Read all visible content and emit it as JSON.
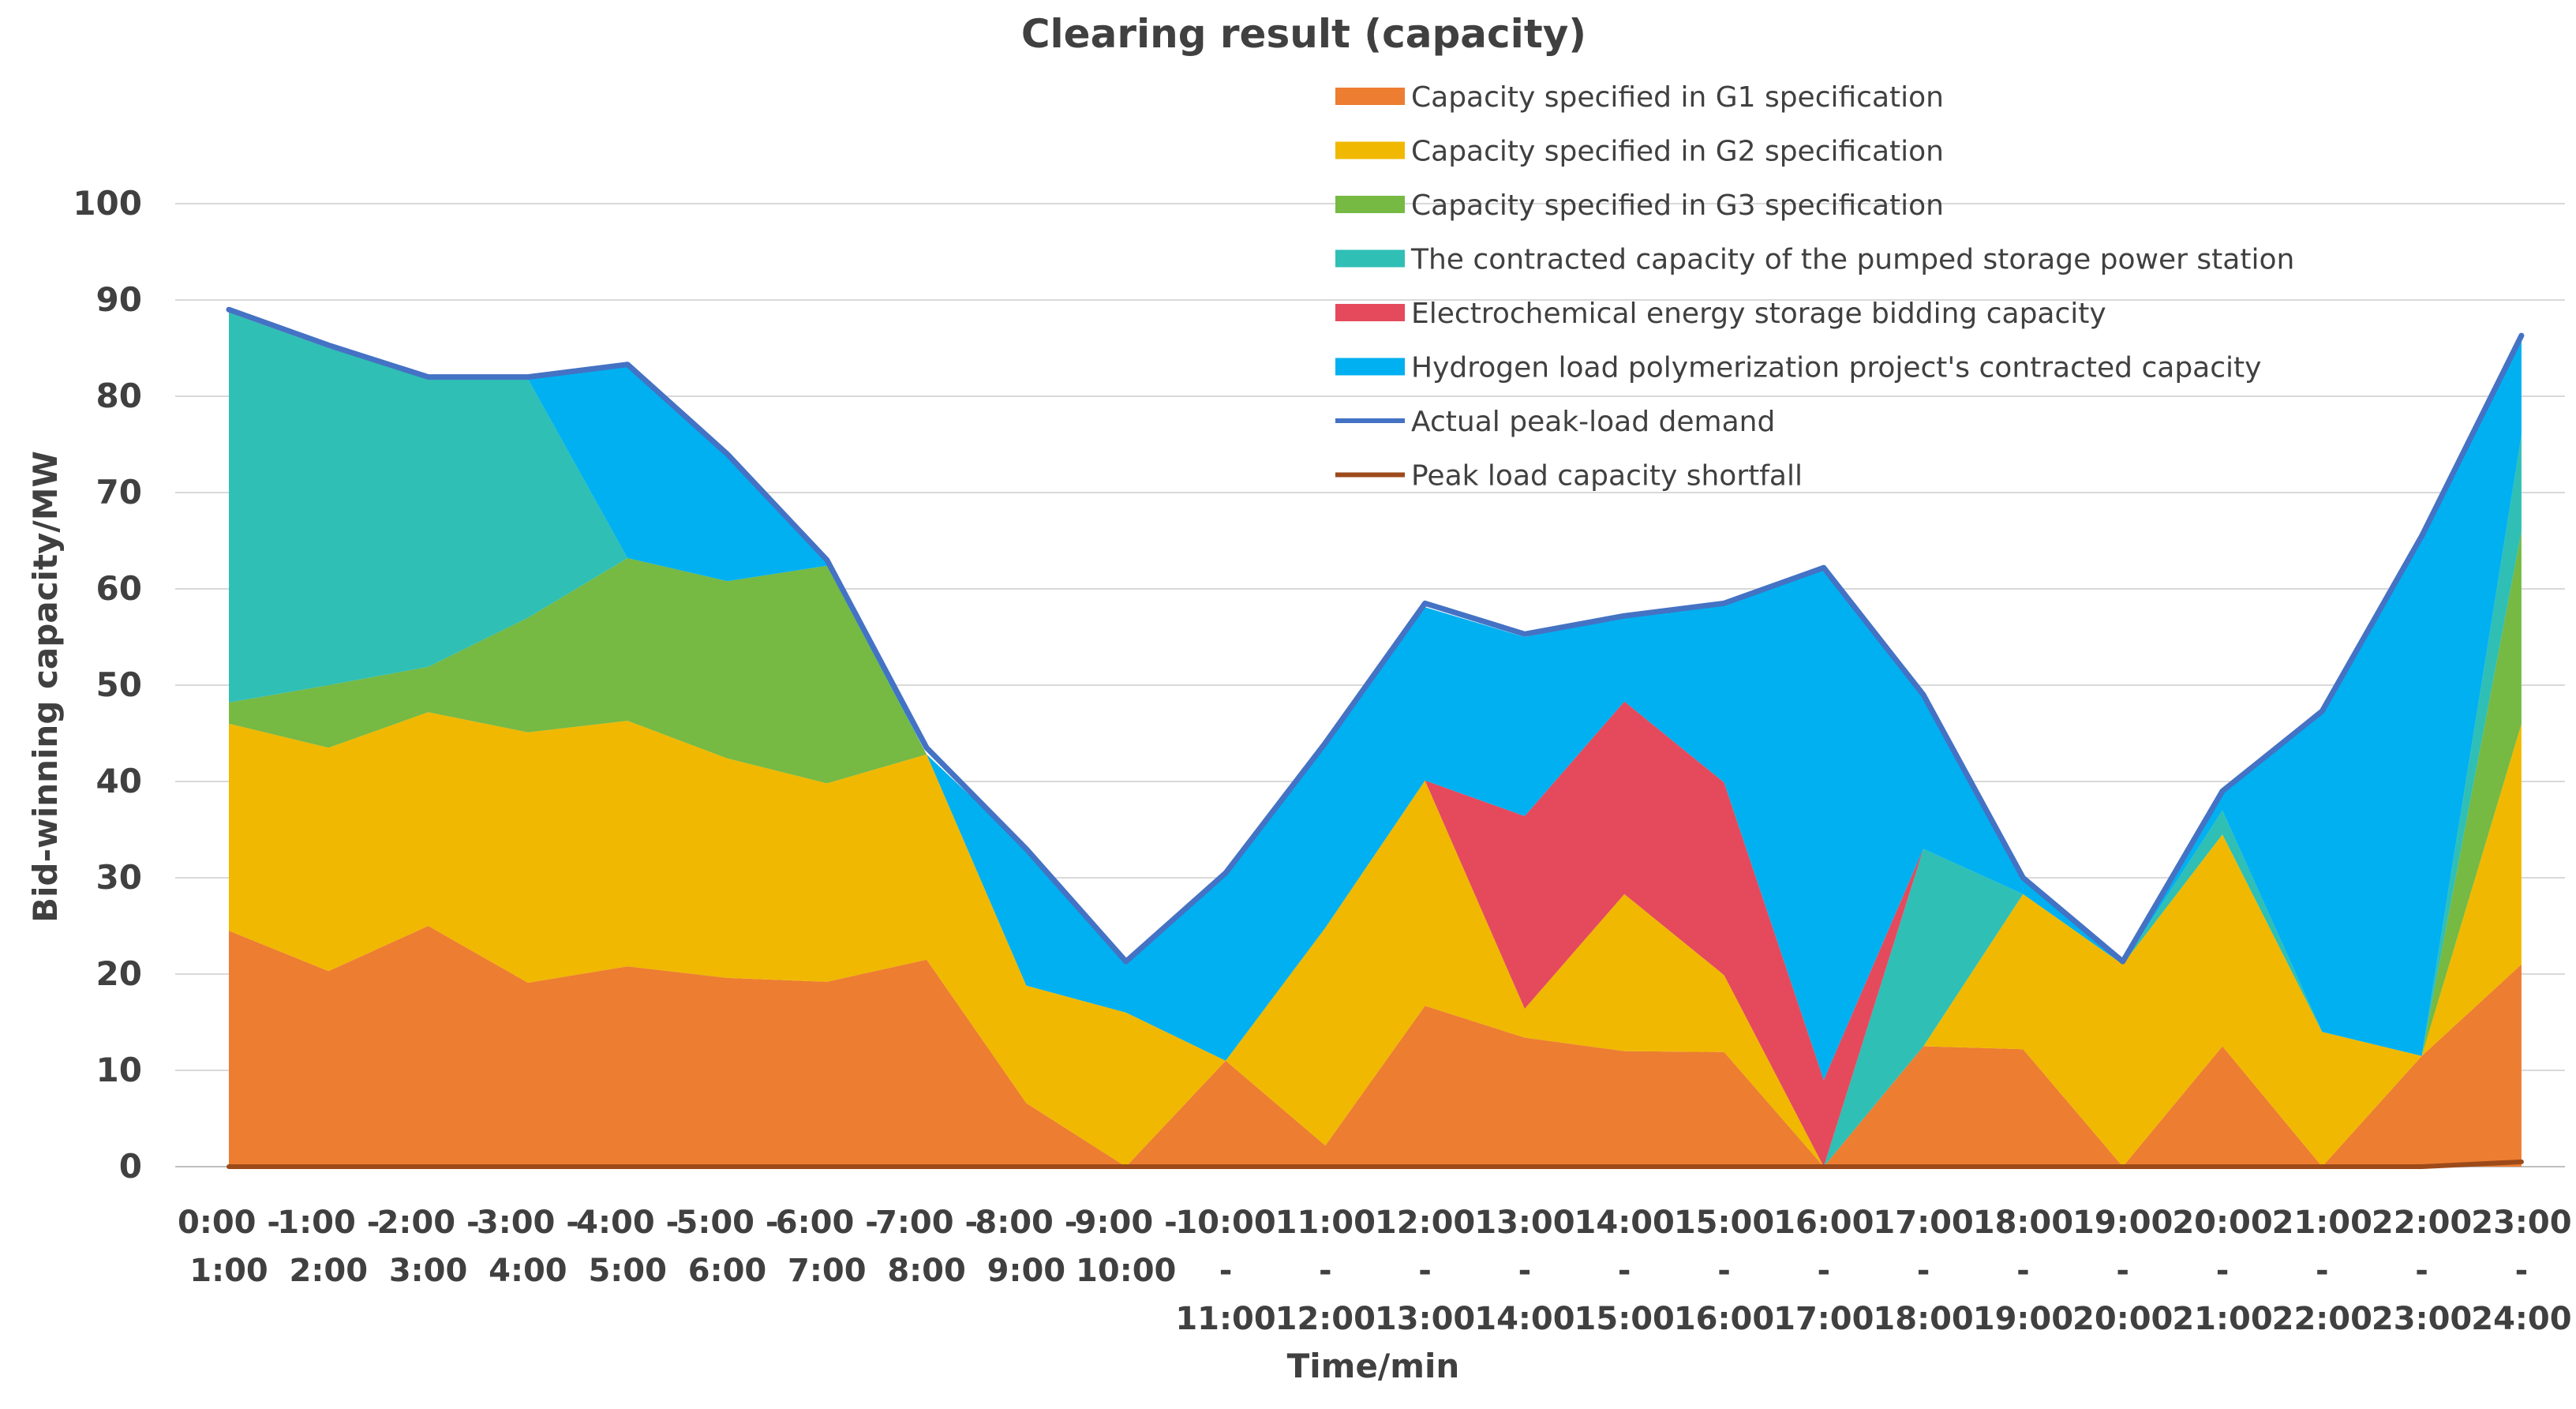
{
  "chart_data": {
    "type": "area",
    "title": "Clearing result (capacity)",
    "xlabel": "Time/min",
    "ylabel": "Bid-winning capacity/MW",
    "ylim": [
      0,
      100
    ],
    "yticks": [
      0,
      10,
      20,
      30,
      40,
      50,
      60,
      70,
      80,
      90,
      100
    ],
    "grid": true,
    "legend_position": "top-right",
    "categories": [
      [
        "0:00 -",
        "1:00"
      ],
      [
        "1:00 -",
        "2:00"
      ],
      [
        "2:00 -",
        "3:00"
      ],
      [
        "3:00 -",
        "4:00"
      ],
      [
        "4:00 -",
        "5:00"
      ],
      [
        "5:00 -",
        "6:00"
      ],
      [
        "6:00 -",
        "7:00"
      ],
      [
        "7:00 -",
        "8:00"
      ],
      [
        "8:00 -",
        "9:00"
      ],
      [
        "9:00 -",
        "10:00"
      ],
      [
        "10:00",
        "-",
        "11:00"
      ],
      [
        "11:00",
        "-",
        "12:00"
      ],
      [
        "12:00",
        "-",
        "13:00"
      ],
      [
        "13:00",
        "-",
        "14:00"
      ],
      [
        "14:00",
        "-",
        "15:00"
      ],
      [
        "15:00",
        "-",
        "16:00"
      ],
      [
        "16:00",
        "-",
        "17:00"
      ],
      [
        "17:00",
        "-",
        "18:00"
      ],
      [
        "18:00",
        "-",
        "19:00"
      ],
      [
        "19:00",
        "-",
        "20:00"
      ],
      [
        "20:00",
        "-",
        "21:00"
      ],
      [
        "21:00",
        "-",
        "22:00"
      ],
      [
        "22:00",
        "-",
        "23:00"
      ],
      [
        "23:00",
        "-",
        "24:00"
      ]
    ],
    "stacked_series": [
      {
        "name": "Capacity specified in G1 specification",
        "color": "#ED7D31",
        "values": [
          24.5,
          20.3,
          25,
          19.1,
          20.8,
          19.6,
          19.2,
          21.5,
          6.6,
          0,
          11,
          2.2,
          16.7,
          13.4,
          12,
          11.9,
          0,
          12.5,
          12.2,
          0,
          12.5,
          0,
          11.5,
          21
        ]
      },
      {
        "name": "Capacity specified in G2 specification",
        "color": "#F0B800",
        "values": [
          21.5,
          23.2,
          22.2,
          26,
          25.5,
          22.8,
          20.6,
          21.3,
          12.2,
          16,
          0,
          22.6,
          23.4,
          3,
          16.3,
          8,
          0,
          0,
          16.1,
          21,
          22,
          14,
          0,
          25
        ]
      },
      {
        "name": "Capacity specified in G3 specification",
        "color": "#76B943",
        "values": [
          2.2,
          6.5,
          4.7,
          11.9,
          16.9,
          18.4,
          22.6,
          0,
          0,
          0,
          0,
          0,
          0,
          0,
          0,
          0,
          0,
          0,
          0,
          0,
          0,
          0,
          0,
          20
        ]
      },
      {
        "name": "The contracted capacity of the pumped storage power station",
        "color": "#2FBFB5",
        "values": [
          40.5,
          35,
          30.1,
          24.8,
          0,
          0,
          0,
          0,
          0,
          0,
          0,
          0,
          0,
          0,
          0,
          0,
          0,
          20.5,
          0,
          0,
          2.5,
          0,
          0,
          10
        ]
      },
      {
        "name": "Electrochemical energy storage bidding capacity",
        "color": "#E44A5C",
        "values": [
          0,
          0,
          0,
          0,
          0,
          0,
          0,
          0,
          0,
          0,
          0,
          0,
          0,
          20,
          20,
          20,
          9,
          0,
          0,
          0,
          0,
          0,
          0,
          0
        ]
      },
      {
        "name": "Hydrogen load polymerization project's contracted capacity",
        "color": "#00B0F0",
        "values": [
          0,
          0,
          0,
          0,
          20.1,
          13.2,
          0.5,
          0,
          14.2,
          5,
          19.2,
          19.2,
          18,
          18.6,
          8.8,
          18.4,
          53,
          16,
          1.5,
          0,
          2,
          33,
          54,
          10
        ]
      }
    ],
    "line_series": [
      {
        "name": "Actual peak-load demand",
        "color": "#4472C4",
        "values": [
          89,
          85.3,
          82,
          82,
          83.3,
          74,
          63,
          43.5,
          33,
          21.3,
          30.5,
          44,
          58.5,
          55.3,
          57.2,
          58.5,
          62.2,
          49,
          30,
          21.3,
          39,
          47.3,
          65.5,
          86.3
        ]
      },
      {
        "name": "Peak load capacity shortfall",
        "color": "#9C4A1A",
        "values": [
          0,
          0,
          0,
          0,
          0,
          0,
          0,
          0,
          0,
          0,
          0,
          0,
          0,
          0,
          0,
          0,
          0,
          0,
          0,
          0,
          0,
          0,
          0,
          0.5
        ]
      }
    ]
  }
}
